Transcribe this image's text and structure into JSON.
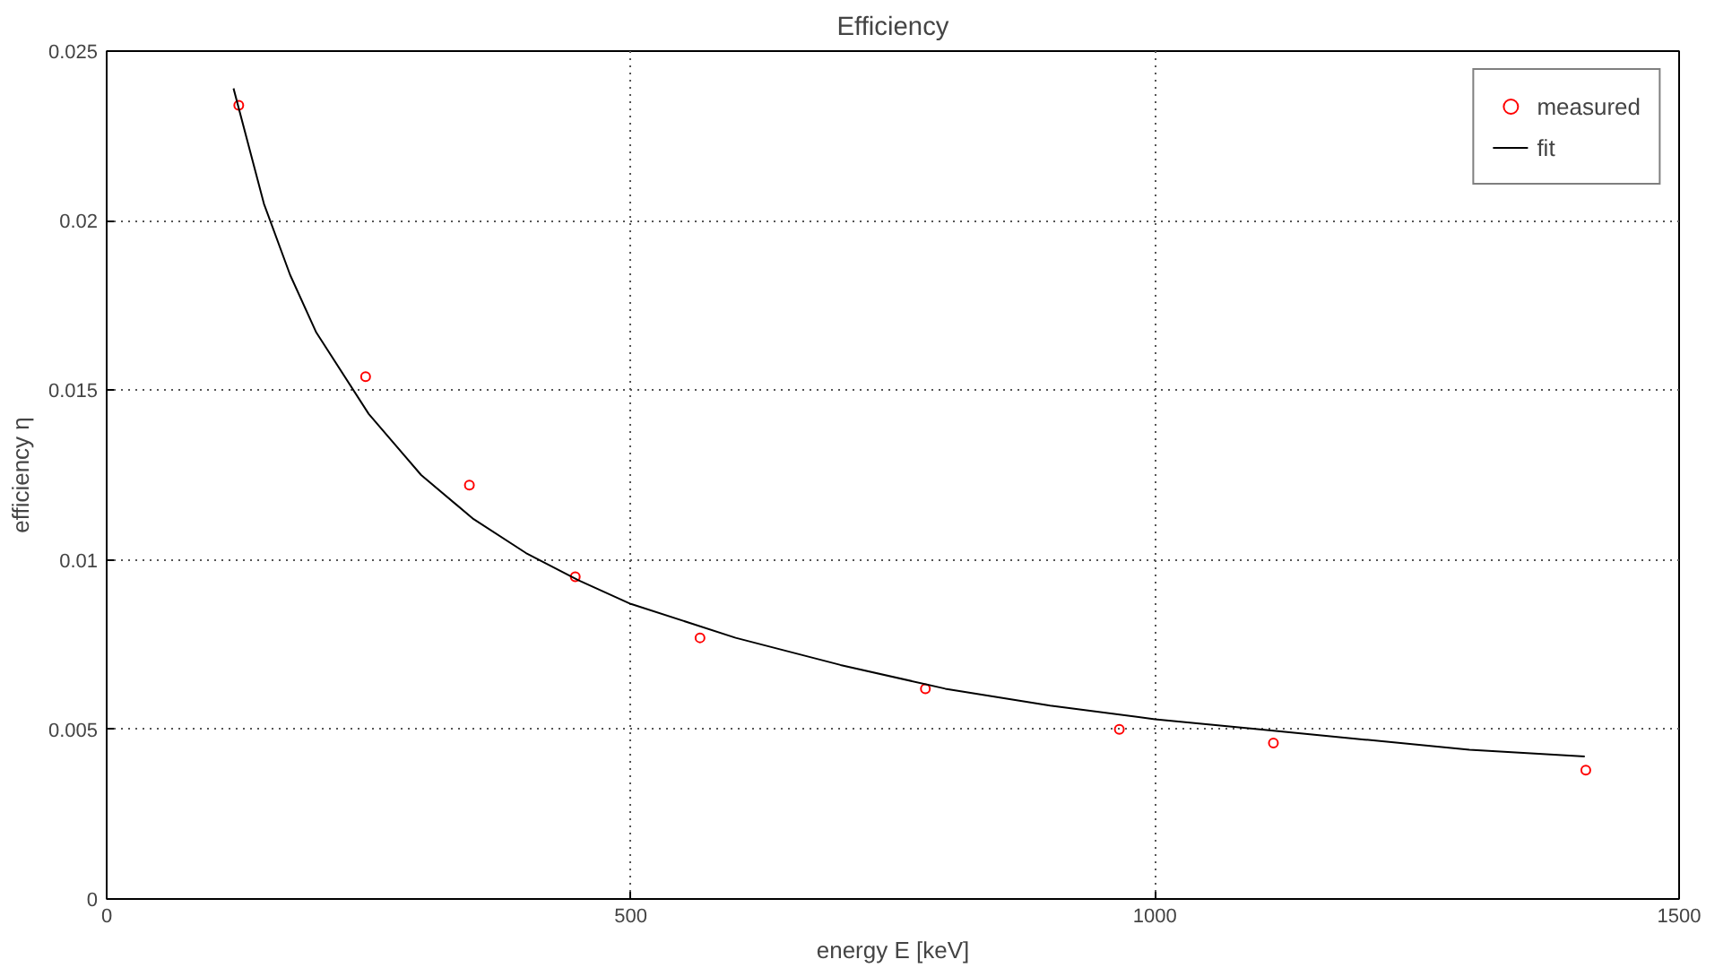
{
  "chart_data": {
    "type": "scatter",
    "title": "Efficiency",
    "xlabel": "energy E [keV]",
    "ylabel": "efficiency η",
    "xlim": [
      0,
      1500
    ],
    "ylim": [
      0,
      0.025
    ],
    "xticks": [
      0,
      500,
      1000,
      1500
    ],
    "yticks": [
      0,
      0.005,
      0.01,
      0.015,
      0.02,
      0.025
    ],
    "grid": true,
    "legend": "top right",
    "series": [
      {
        "name": "measured",
        "marker": "circle",
        "color": "#ff0000",
        "x": [
          126,
          247,
          346,
          447,
          566,
          781,
          966,
          1113,
          1411
        ],
        "values": [
          0.0234,
          0.0154,
          0.0122,
          0.0095,
          0.0077,
          0.0062,
          0.005,
          0.0046,
          0.0038
        ]
      },
      {
        "name": "fit",
        "type": "line",
        "line_style": "solid",
        "color": "#000000",
        "x": [
          121,
          150,
          175,
          200,
          250,
          300,
          350,
          400,
          450,
          500,
          600,
          700,
          800,
          900,
          1000,
          1100,
          1200,
          1300,
          1410
        ],
        "values": [
          0.0239,
          0.0205,
          0.0184,
          0.0167,
          0.0143,
          0.0125,
          0.0112,
          0.0102,
          0.0094,
          0.0087,
          0.0077,
          0.0069,
          0.0062,
          0.0057,
          0.0053,
          0.005,
          0.0047,
          0.0044,
          0.0042
        ]
      }
    ]
  }
}
